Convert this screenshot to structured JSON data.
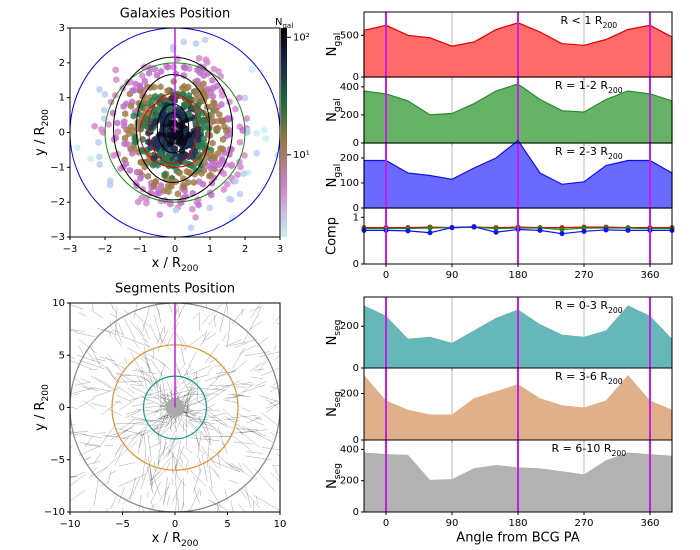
{
  "chart_data": [
    {
      "type": "hexbin",
      "title": "Galaxies Position",
      "xlabel": [
        "x / R",
        "200"
      ],
      "ylabel": [
        "y / R",
        "200"
      ],
      "xlim": [
        -3,
        3
      ],
      "ylim": [
        -3,
        3
      ],
      "xticks": [
        {
          "value": -3,
          "label": "−3"
        },
        {
          "value": -2,
          "label": "−2"
        },
        {
          "value": -1,
          "label": "−1"
        },
        0,
        1,
        2,
        3
      ],
      "yticks": [
        {
          "value": -3,
          "label": "−3"
        },
        {
          "value": -2,
          "label": "−2"
        },
        {
          "value": -1,
          "label": "−1"
        },
        0,
        1,
        2,
        3
      ],
      "colorbar": {
        "label": [
          "N",
          "gal"
        ],
        "lim": [
          2,
          120
        ],
        "log": true,
        "ticks": [
          {
            "value": 100,
            "label": "10²"
          },
          {
            "value": 10,
            "label": "10¹"
          }
        ]
      }
    },
    {
      "type": "segments",
      "title": "Segments Position",
      "xlabel": [
        "x / R",
        "200"
      ],
      "ylabel": [
        "y / R",
        "200"
      ],
      "xlim": [
        -10,
        10
      ],
      "ylim": [
        -10,
        10
      ],
      "xticks": [
        {
          "value": -10,
          "label": "−10"
        },
        {
          "value": -5,
          "label": "−5"
        },
        0,
        5,
        10
      ],
      "yticks": [
        {
          "value": -10,
          "label": "−10"
        },
        {
          "value": -5,
          "label": "−5"
        },
        0,
        5,
        10
      ]
    },
    {
      "type": "area",
      "ylabel": [
        "N",
        "gal"
      ],
      "annotation": [
        "R < 1 R",
        "200"
      ],
      "color": "#ff6a6a",
      "edgecolor": "#e00000",
      "x": [
        -30,
        0,
        30,
        60,
        90,
        120,
        150,
        180,
        210,
        240,
        270,
        300,
        330,
        360,
        390
      ],
      "values": [
        560,
        620,
        500,
        470,
        370,
        420,
        570,
        650,
        540,
        400,
        380,
        450,
        570,
        620,
        480
      ],
      "xlim": [
        -30,
        390
      ],
      "ylim": [
        0,
        780
      ],
      "yticks": [
        0,
        500
      ],
      "xticks": [
        0,
        90,
        180,
        270,
        360
      ],
      "reference_lines": {
        "values": [
          0,
          180,
          360
        ],
        "color": "#c81ee6"
      }
    },
    {
      "type": "area",
      "ylabel": [
        "N",
        "gal"
      ],
      "annotation": [
        "R = 1-2 R",
        "200"
      ],
      "color": "#66b266",
      "edgecolor": "#2b8a2b",
      "x": [
        -30,
        0,
        30,
        60,
        90,
        120,
        150,
        180,
        210,
        240,
        270,
        300,
        330,
        360,
        390
      ],
      "values": [
        370,
        350,
        300,
        200,
        210,
        280,
        370,
        420,
        310,
        230,
        220,
        310,
        370,
        350,
        300
      ],
      "xlim": [
        -30,
        390
      ],
      "ylim": [
        0,
        470
      ],
      "yticks": [
        0,
        200,
        400
      ],
      "xticks": [
        0,
        90,
        180,
        270,
        360
      ],
      "reference_lines": {
        "values": [
          0,
          180,
          360
        ],
        "color": "#c81ee6"
      }
    },
    {
      "type": "area",
      "ylabel": [
        "N",
        "gal"
      ],
      "annotation": [
        "R = 2-3 R",
        "200"
      ],
      "color": "#6a6aff",
      "edgecolor": "#1010ee",
      "x": [
        -30,
        0,
        30,
        60,
        90,
        120,
        150,
        180,
        210,
        240,
        270,
        300,
        330,
        360,
        390
      ],
      "values": [
        190,
        190,
        140,
        130,
        115,
        160,
        200,
        270,
        140,
        95,
        105,
        170,
        190,
        190,
        140
      ],
      "xlim": [
        -30,
        390
      ],
      "ylim": [
        0,
        260
      ],
      "yticks": [
        0,
        100,
        200
      ],
      "xticks": [
        0,
        90,
        180,
        270,
        360
      ],
      "reference_lines": {
        "values": [
          0,
          180,
          360
        ],
        "color": "#c81ee6"
      }
    },
    {
      "type": "line",
      "ylabel": "Comp",
      "x": [
        -30,
        0,
        30,
        60,
        90,
        120,
        150,
        180,
        210,
        240,
        270,
        300,
        330,
        360,
        390
      ],
      "series": [
        {
          "color": "#e00000",
          "values": [
            0.78,
            0.78,
            0.78,
            0.79,
            0.78,
            0.79,
            0.78,
            0.79,
            0.78,
            0.78,
            0.79,
            0.79,
            0.78,
            0.78,
            0.78
          ]
        },
        {
          "color": "#1a8a1a",
          "values": [
            0.76,
            0.76,
            0.76,
            0.77,
            0.78,
            0.79,
            0.76,
            0.77,
            0.77,
            0.74,
            0.77,
            0.77,
            0.77,
            0.76,
            0.76
          ]
        },
        {
          "color": "#1010ee",
          "values": [
            0.72,
            0.72,
            0.71,
            0.67,
            0.78,
            0.8,
            0.68,
            0.74,
            0.72,
            0.65,
            0.7,
            0.73,
            0.72,
            0.72,
            0.72
          ]
        }
      ],
      "xlim": [
        -30,
        390
      ],
      "ylim": [
        0,
        1.2
      ],
      "yticks": [
        0,
        1
      ],
      "xticks": [
        0,
        90,
        180,
        270,
        360
      ],
      "show_xticklabels": true,
      "reference_lines": {
        "values": [
          0,
          180,
          360
        ],
        "color": "#c81ee6"
      }
    },
    {
      "type": "area",
      "ylabel": [
        "N",
        "seg"
      ],
      "annotation": [
        "R = 0-3 R",
        "200"
      ],
      "color": "#66b8b8",
      "x": [
        -30,
        0,
        30,
        60,
        90,
        120,
        150,
        180,
        210,
        240,
        270,
        300,
        330,
        360,
        390
      ],
      "values": [
        300,
        250,
        140,
        150,
        120,
        180,
        240,
        280,
        210,
        160,
        150,
        180,
        300,
        250,
        140
      ],
      "xlim": [
        -30,
        390
      ],
      "ylim": [
        0,
        340
      ],
      "yticks": [
        0,
        200
      ],
      "xticks": [
        0,
        90,
        180,
        270,
        360
      ],
      "reference_lines": {
        "values": [
          0,
          180,
          360
        ],
        "color": "#c81ee6"
      }
    },
    {
      "type": "area",
      "ylabel": [
        "N",
        "seg"
      ],
      "annotation": [
        "R = 3-6 R",
        "200"
      ],
      "color": "#e0b08a",
      "x": [
        -30,
        0,
        30,
        60,
        90,
        120,
        150,
        180,
        210,
        240,
        270,
        300,
        330,
        360,
        390
      ],
      "values": [
        280,
        170,
        130,
        110,
        110,
        180,
        210,
        240,
        180,
        150,
        140,
        170,
        280,
        170,
        130
      ],
      "xlim": [
        -30,
        390
      ],
      "ylim": [
        0,
        310
      ],
      "yticks": [
        0,
        200
      ],
      "xticks": [
        0,
        90,
        180,
        270,
        360
      ],
      "reference_lines": {
        "values": [
          0,
          180,
          360
        ],
        "color": "#c81ee6"
      }
    },
    {
      "type": "area",
      "ylabel": [
        "N",
        "seg"
      ],
      "annotation": [
        "R = 6-10 R",
        "200"
      ],
      "color": "#b2b2b2",
      "xlabel": "Angle from BCG PA",
      "x": [
        -30,
        0,
        30,
        60,
        90,
        120,
        150,
        180,
        210,
        240,
        270,
        300,
        330,
        360,
        390
      ],
      "values": [
        380,
        370,
        365,
        205,
        210,
        280,
        300,
        285,
        280,
        260,
        240,
        330,
        380,
        370,
        360
      ],
      "xlim": [
        -30,
        390
      ],
      "ylim": [
        0,
        460
      ],
      "yticks": [
        0,
        200,
        400
      ],
      "xticks": [
        0,
        90,
        180,
        270,
        360
      ],
      "show_xticklabels": true,
      "reference_lines": {
        "values": [
          0,
          180,
          360
        ],
        "color": "#c81ee6"
      }
    }
  ]
}
